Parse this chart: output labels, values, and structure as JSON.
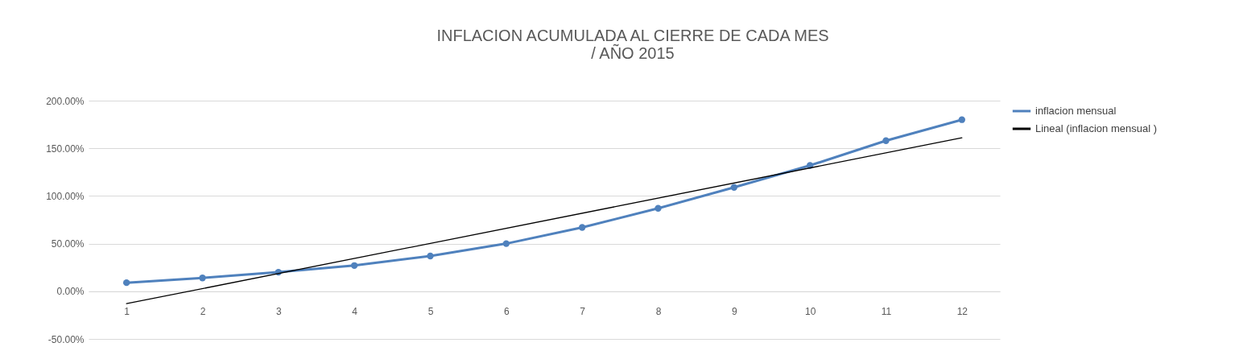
{
  "chart_data": {
    "type": "line",
    "title": [
      "INFLACION   ACUMULADA AL CIERRE  DE CADA MES",
      "/ AÑO 2015"
    ],
    "x": [
      1,
      2,
      3,
      4,
      5,
      6,
      7,
      8,
      9,
      10,
      11,
      12
    ],
    "series": [
      {
        "name": "inflacion mensual",
        "color": "#4f81bd",
        "marker": "circle",
        "values": [
          9,
          14,
          20,
          27,
          37,
          50,
          67,
          87,
          109,
          132,
          158,
          180
        ]
      },
      {
        "name": "Lineal (inflacion mensual )",
        "color": "#000000",
        "marker": "none",
        "x": [
          1,
          12
        ],
        "values": [
          -13,
          161
        ]
      }
    ],
    "xlim": [
      0.5,
      12.5
    ],
    "xticks": [
      1,
      2,
      3,
      4,
      5,
      6,
      7,
      8,
      9,
      10,
      11,
      12
    ],
    "ylim": [
      -50,
      200
    ],
    "yticks": [
      {
        "value": -50,
        "label": "-50.00%"
      },
      {
        "value": 0,
        "label": "0.00%"
      },
      {
        "value": 50,
        "label": "50.00%"
      },
      {
        "value": 100,
        "label": "100.00%"
      },
      {
        "value": 150,
        "label": "150.00%"
      },
      {
        "value": 200,
        "label": "200.00%"
      }
    ],
    "grid": "y",
    "legend": "right"
  }
}
